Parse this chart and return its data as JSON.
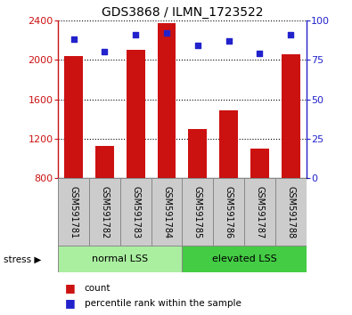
{
  "title": "GDS3868 / ILMN_1723522",
  "samples": [
    "GSM591781",
    "GSM591782",
    "GSM591783",
    "GSM591784",
    "GSM591785",
    "GSM591786",
    "GSM591787",
    "GSM591788"
  ],
  "bar_values": [
    2040,
    1130,
    2100,
    2370,
    1300,
    1490,
    1100,
    2060
  ],
  "percentile_values": [
    88,
    80,
    91,
    92,
    84,
    87,
    79,
    91
  ],
  "ylim_left": [
    800,
    2400
  ],
  "ylim_right": [
    0,
    100
  ],
  "yticks_left": [
    800,
    1200,
    1600,
    2000,
    2400
  ],
  "yticks_right": [
    0,
    25,
    50,
    75,
    100
  ],
  "bar_color": "#cc1111",
  "point_color": "#2222cc",
  "label_area_color": "#cccccc",
  "group1_color": "#aaeea0",
  "group2_color": "#44cc44",
  "group1_label": "normal LSS",
  "group2_label": "elevated LSS",
  "stress_label": "stress",
  "legend_count": "count",
  "legend_percentile": "percentile rank within the sample",
  "group1_indices": [
    0,
    1,
    2,
    3
  ],
  "group2_indices": [
    4,
    5,
    6,
    7
  ]
}
